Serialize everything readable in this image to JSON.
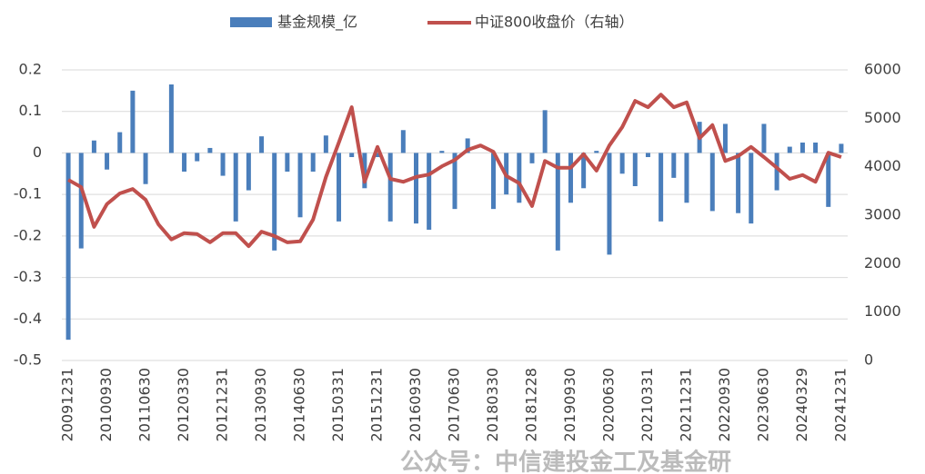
{
  "chart_data": {
    "type": "bar_line",
    "categories": [
      "20091231",
      null,
      null,
      "20100930",
      null,
      null,
      "20110630",
      null,
      null,
      "20120330",
      null,
      null,
      "20121231",
      null,
      null,
      "20130930",
      null,
      null,
      "20140630",
      null,
      null,
      "20150331",
      null,
      null,
      "20151231",
      null,
      null,
      "20160930",
      null,
      null,
      "20170630",
      null,
      null,
      "20180330",
      null,
      null,
      "20181228",
      null,
      null,
      "20190930",
      null,
      null,
      "20200630",
      null,
      null,
      "20210331",
      null,
      null,
      "20211231",
      null,
      null,
      "20220930",
      null,
      null,
      "20230630",
      null,
      null,
      "20240329",
      null,
      null,
      "20241231"
    ],
    "series": [
      {
        "name": "基金规模_亿",
        "color": "#4a7ebb",
        "kind": "bar",
        "values": [
          -0.45,
          -0.23,
          0.03,
          -0.04,
          0.05,
          0.15,
          -0.075,
          0,
          0.165,
          -0.045,
          -0.02,
          0.012,
          -0.055,
          -0.165,
          -0.09,
          0.04,
          -0.235,
          -0.045,
          -0.155,
          -0.045,
          0.042,
          -0.165,
          -0.01,
          -0.085,
          -0.01,
          -0.165,
          0.055,
          -0.17,
          -0.185,
          0.005,
          -0.135,
          0.035,
          0,
          -0.135,
          -0.1,
          -0.12,
          -0.025,
          0.103,
          -0.235,
          -0.12,
          -0.085,
          0.005,
          -0.245,
          -0.05,
          -0.08,
          -0.01,
          -0.165,
          -0.06,
          -0.12,
          0.075,
          -0.14,
          0.07,
          -0.145,
          -0.17,
          0.07,
          -0.09,
          0.015,
          0.025,
          0.025,
          -0.13,
          0.022
        ]
      },
      {
        "name": "中证800收盘价（右轴）",
        "color": "#c0504d",
        "kind": "line",
        "axis": "y2",
        "values": [
          3730,
          3580,
          2760,
          3230,
          3450,
          3540,
          3320,
          2810,
          2500,
          2630,
          2610,
          2440,
          2630,
          2630,
          2360,
          2660,
          2570,
          2440,
          2460,
          2910,
          3790,
          4500,
          5230,
          3690,
          4410,
          3750,
          3690,
          3790,
          3840,
          4010,
          4140,
          4350,
          4440,
          4310,
          3810,
          3660,
          3190,
          4120,
          3980,
          3980,
          4260,
          3920,
          4440,
          4820,
          5360,
          5230,
          5490,
          5230,
          5330,
          4590,
          4860,
          4120,
          4220,
          4410,
          4200,
          3980,
          3750,
          3830,
          3690,
          4290,
          4200
        ]
      }
    ],
    "ylim": [
      -0.5,
      0.2
    ],
    "yticks": [
      -0.5,
      -0.4,
      -0.3,
      -0.2,
      -0.1,
      0,
      0.1,
      0.2
    ],
    "y2lim": [
      0,
      6000
    ],
    "y2ticks": [
      0,
      1000,
      2000,
      3000,
      4000,
      5000,
      6000
    ],
    "grid": true,
    "legend": "top",
    "annotation": "公众号：中信建投金工及基金研"
  }
}
